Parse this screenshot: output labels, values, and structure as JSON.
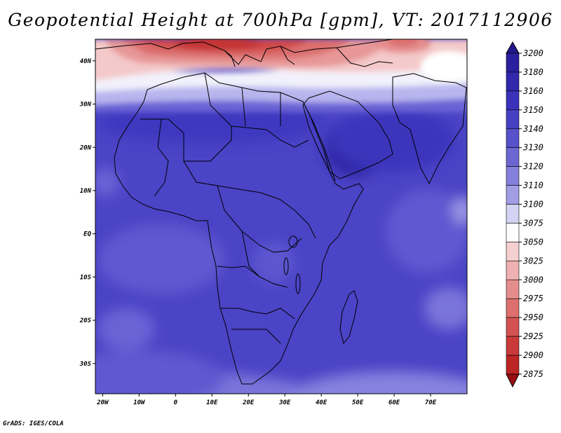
{
  "title": "Geopotential Height at 700hPa [gpm], VT: 2017112906",
  "credit": "GrADS: IGES/COLA",
  "map": {
    "lon_range": [
      -22,
      80
    ],
    "lat_range": [
      -37,
      45
    ],
    "lon_ticks": [
      {
        "value": -20,
        "label": "20W"
      },
      {
        "value": -10,
        "label": "10W"
      },
      {
        "value": 0,
        "label": "0"
      },
      {
        "value": 10,
        "label": "10E"
      },
      {
        "value": 20,
        "label": "20E"
      },
      {
        "value": 30,
        "label": "30E"
      },
      {
        "value": 40,
        "label": "40E"
      },
      {
        "value": 50,
        "label": "50E"
      },
      {
        "value": 60,
        "label": "60E"
      },
      {
        "value": 70,
        "label": "70E"
      }
    ],
    "lat_ticks": [
      {
        "value": 40,
        "label": "40N"
      },
      {
        "value": 30,
        "label": "30N"
      },
      {
        "value": 20,
        "label": "20N"
      },
      {
        "value": 10,
        "label": "10N"
      },
      {
        "value": 0,
        "label": "EQ"
      },
      {
        "value": -10,
        "label": "10S"
      },
      {
        "value": -20,
        "label": "20S"
      },
      {
        "value": -30,
        "label": "30S"
      }
    ]
  },
  "colorbar": {
    "levels": [
      "3200",
      "3180",
      "3160",
      "3150",
      "3140",
      "3130",
      "3120",
      "3110",
      "3100",
      "3075",
      "3050",
      "3025",
      "3000",
      "2975",
      "2950",
      "2925",
      "2900",
      "2875"
    ],
    "colors": [
      "#2a1f9e",
      "#3228ad",
      "#3a32bb",
      "#4840c4",
      "#5851cc",
      "#6d67d4",
      "#8580dc",
      "#a19ee6",
      "#d4d3f3",
      "#ffffff",
      "#f5d0d0",
      "#eeb0b0",
      "#e58d8d",
      "#dd6f6f",
      "#d55252",
      "#cb3a3a",
      "#bd2424",
      "#a81414"
    ],
    "over_color": "#23188c",
    "under_color": "#991010"
  }
}
